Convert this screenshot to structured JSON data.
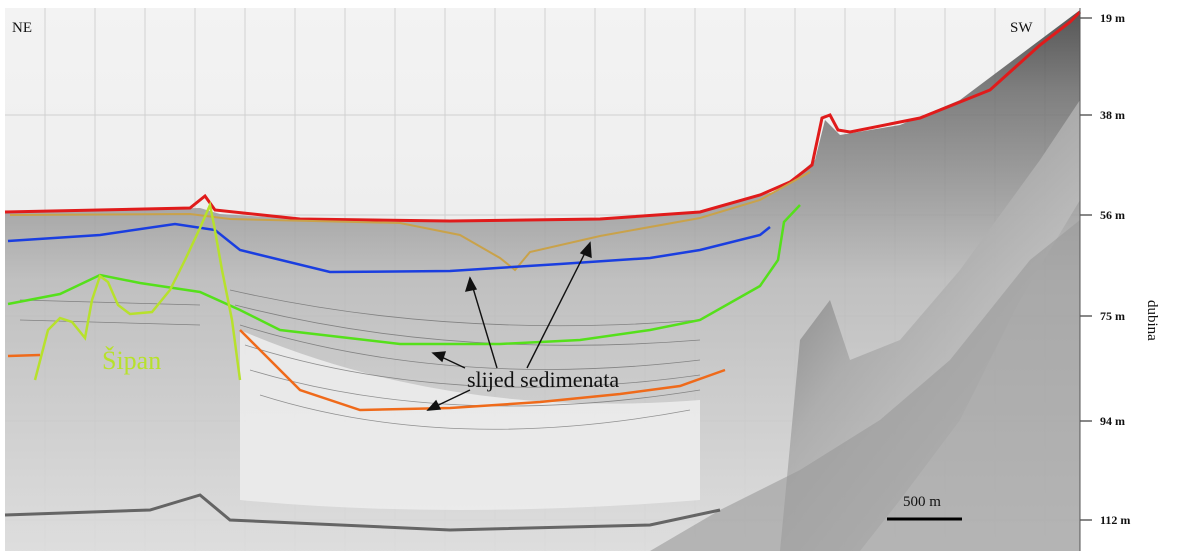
{
  "profile": {
    "left_label": "NE",
    "right_label": "SW",
    "depth_axis_title": "dubina",
    "depth_ticks": [
      "19 m",
      "38 m",
      "56 m",
      "75 m",
      "94 m",
      "112 m"
    ],
    "annotation": "slijed sedimenata",
    "feature_label": "Šipan",
    "scale_bar_label": "500 m"
  },
  "colors": {
    "seafloor": "#e01b1b",
    "sediment_top": "#c9a24a",
    "blue_reflector": "#1a3ee0",
    "green_reflector": "#55e01b",
    "orange_reflector": "#ef6a1a",
    "sipan_outline": "#b7e12c"
  }
}
